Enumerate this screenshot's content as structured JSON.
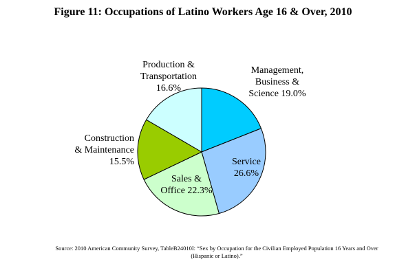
{
  "chart_data": {
    "type": "pie",
    "title": "Figure 11: Occupations of Latino Workers Age 16 & Over, 2010",
    "slices": [
      {
        "name": "Management, Business & Science",
        "value": 19.0,
        "color": "#00ccff",
        "label": "Management,\nBusiness &\nScience 19.0%"
      },
      {
        "name": "Service",
        "value": 26.6,
        "color": "#99ccff",
        "label": "Service\n26.6%"
      },
      {
        "name": "Sales & Office",
        "value": 22.3,
        "color": "#ccffcc",
        "label": "Sales &\nOffice 22.3%"
      },
      {
        "name": "Construction & Maintenance",
        "value": 15.5,
        "color": "#99cc00",
        "label": "Construction\n& Maintenance\n15.5%"
      },
      {
        "name": "Production & Transportation",
        "value": 16.6,
        "color": "#ccffff",
        "label": "Production &\nTransportation\n16.6%"
      }
    ],
    "source": "Source: 2010 American Community Survey, TableB24010I: “Sex by Occupation for the Civilian Employed Population 16 Years and Over (Hispanic or Latino).”"
  }
}
